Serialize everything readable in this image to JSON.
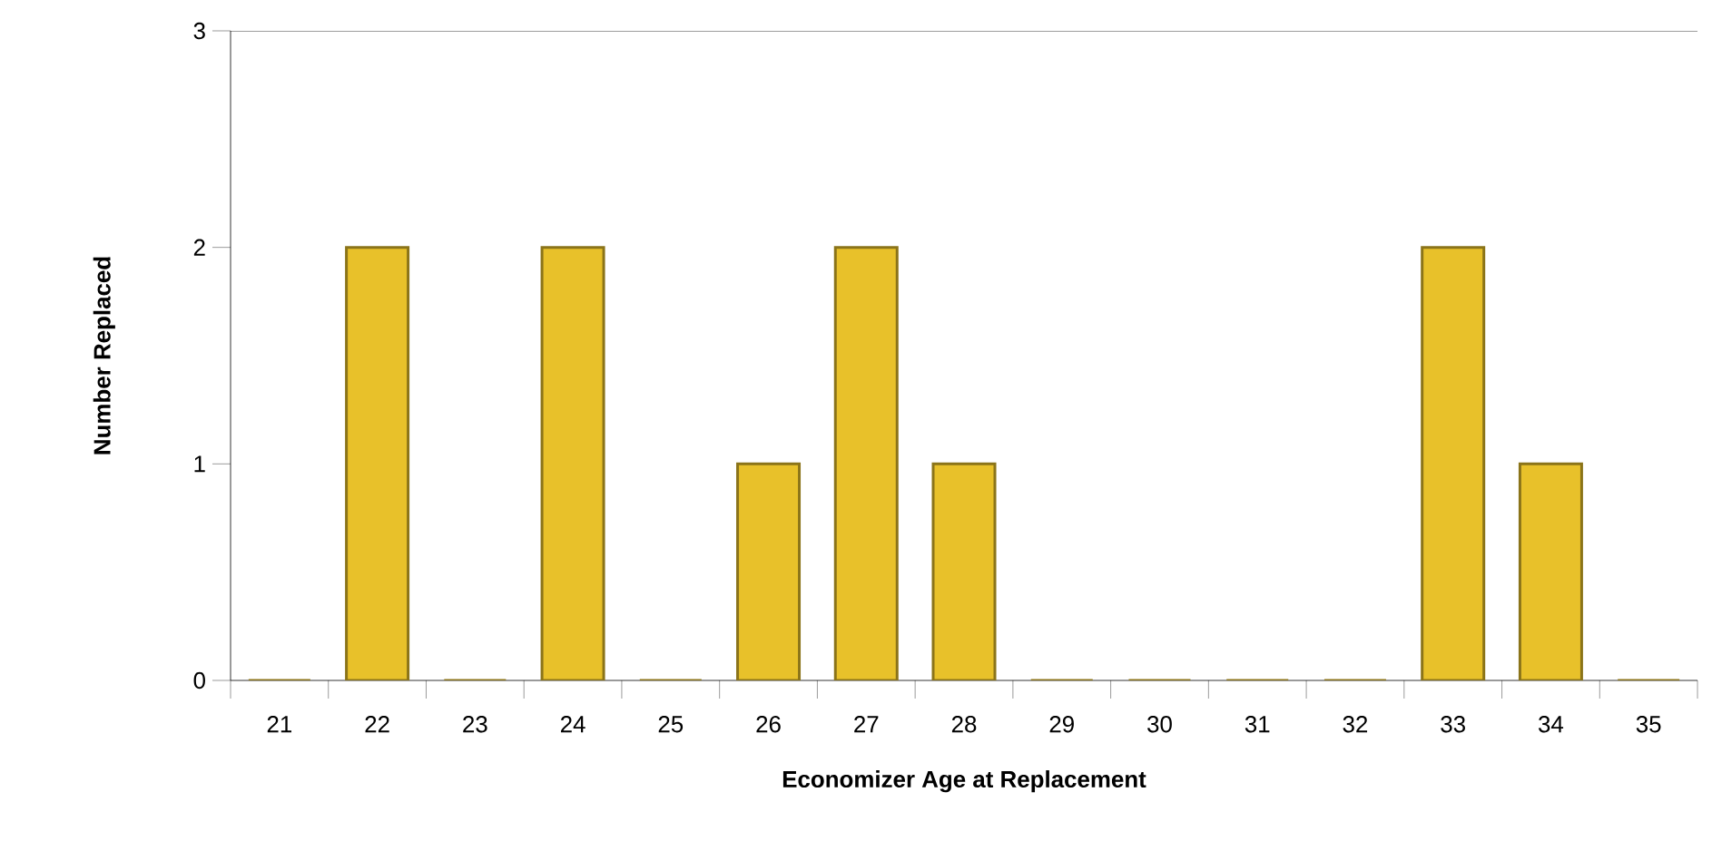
{
  "chart_data": {
    "type": "bar",
    "xlabel": "Economizer Age at Replacement",
    "ylabel": "Number Replaced",
    "categories": [
      "21",
      "22",
      "23",
      "24",
      "25",
      "26",
      "27",
      "28",
      "29",
      "30",
      "31",
      "32",
      "33",
      "34",
      "35"
    ],
    "values": [
      0,
      2,
      0,
      2,
      0,
      1,
      2,
      1,
      0,
      0,
      0,
      0,
      2,
      1,
      0
    ],
    "color": "#e8c12a",
    "ylim": [
      0,
      3
    ],
    "yticks": [
      0,
      1,
      2,
      3
    ],
    "grid": false
  }
}
